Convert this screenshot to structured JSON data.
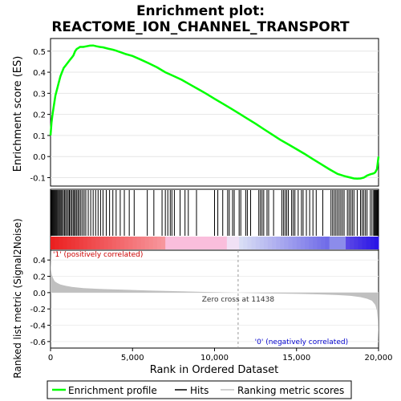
{
  "title_line1": "Enrichment plot:",
  "title_line2": "REACTOME_ION_CHANNEL_TRANSPORT",
  "colors": {
    "enrichment_line": "#00ff00",
    "hits": "#000000",
    "metric_fill": "#c0c0c0",
    "positive_label": "#cc0000",
    "negative_label": "#0000cc",
    "zero_cross_line": "#999999"
  },
  "chart_data": [
    {
      "type": "line",
      "name": "enrichment-profile",
      "ylabel": "Enrichment score (ES)",
      "xlim": [
        0,
        20000
      ],
      "ylim": [
        -0.14,
        0.56
      ],
      "yticks": [
        -0.1,
        0.0,
        0.1,
        0.2,
        0.3,
        0.4,
        0.5
      ],
      "ytick_labels": [
        "-0.1",
        "0.0",
        "0.1",
        "0.2",
        "0.3",
        "0.4",
        "0.5"
      ],
      "grid": true,
      "x": [
        0,
        60,
        120,
        200,
        300,
        400,
        500,
        600,
        700,
        800,
        900,
        1000,
        1100,
        1200,
        1300,
        1400,
        1500,
        1600,
        1700,
        1800,
        2000,
        2200,
        2400,
        2600,
        2800,
        3000,
        3200,
        3500,
        3800,
        4000,
        4300,
        4600,
        5000,
        5500,
        6000,
        6500,
        7000,
        7500,
        8000,
        8500,
        9000,
        9500,
        10000,
        10500,
        11000,
        11500,
        12000,
        12500,
        13000,
        13500,
        14000,
        14500,
        15000,
        15500,
        16000,
        16500,
        17000,
        17500,
        17900,
        18200,
        18500,
        18700,
        18900,
        19100,
        19300,
        19500,
        19700,
        19800,
        19900,
        19950,
        20000
      ],
      "y": [
        0.1,
        0.16,
        0.2,
        0.24,
        0.29,
        0.32,
        0.35,
        0.38,
        0.4,
        0.42,
        0.43,
        0.44,
        0.45,
        0.46,
        0.47,
        0.48,
        0.5,
        0.51,
        0.515,
        0.52,
        0.52,
        0.523,
        0.526,
        0.527,
        0.523,
        0.52,
        0.518,
        0.512,
        0.507,
        0.502,
        0.494,
        0.486,
        0.477,
        0.46,
        0.442,
        0.423,
        0.4,
        0.382,
        0.364,
        0.342,
        0.32,
        0.298,
        0.274,
        0.251,
        0.228,
        0.204,
        0.18,
        0.156,
        0.13,
        0.105,
        0.08,
        0.058,
        0.035,
        0.012,
        -0.012,
        -0.036,
        -0.06,
        -0.082,
        -0.092,
        -0.098,
        -0.104,
        -0.105,
        -0.104,
        -0.1,
        -0.09,
        -0.084,
        -0.08,
        -0.075,
        -0.06,
        -0.03,
        0.0
      ]
    },
    {
      "type": "scatter",
      "name": "hits",
      "hit_positions": [
        20,
        60,
        100,
        150,
        200,
        250,
        300,
        350,
        400,
        450,
        520,
        580,
        640,
        700,
        780,
        850,
        920,
        1000,
        1080,
        1150,
        1220,
        1300,
        1380,
        1450,
        1520,
        1600,
        1680,
        1760,
        1850,
        1950,
        2050,
        2150,
        2300,
        2450,
        2600,
        2750,
        2900,
        3050,
        3200,
        3400,
        3600,
        3800,
        4000,
        4250,
        4500,
        4800,
        5100,
        5900,
        6300,
        6800,
        7000,
        7150,
        7300,
        7400,
        7550,
        7900,
        8200,
        8400,
        8900,
        10000,
        10200,
        10500,
        10800,
        10900,
        11100,
        11200,
        11500,
        11600,
        11900,
        12000,
        12200,
        12700,
        12800,
        12900,
        13000,
        13200,
        13300,
        13600,
        14100,
        14200,
        14300,
        14400,
        14500,
        14700,
        14800,
        14900,
        15100,
        15300,
        15400,
        15600,
        15800,
        16000,
        16200,
        16600,
        17100,
        17200,
        17300,
        17400,
        17500,
        17600,
        17700,
        17800,
        17900,
        18100,
        18200,
        18300,
        18400,
        18500,
        18700,
        18900,
        19000,
        19100,
        19200,
        19300,
        19500,
        19600,
        19700,
        19750,
        19800,
        19850,
        19900,
        19950
      ]
    },
    {
      "type": "area",
      "name": "ranked-list-metric",
      "ylabel": "Ranked list metric (Signal2Noise)",
      "xlabel": "Rank in Ordered Dataset",
      "xlim": [
        0,
        20000
      ],
      "ylim": [
        -0.68,
        0.52
      ],
      "yticks": [
        -0.6,
        -0.4,
        -0.2,
        0.0,
        0.2,
        0.4
      ],
      "ytick_labels": [
        "-0.6",
        "-0.4",
        "-0.2",
        "0.0",
        "0.2",
        "0.4"
      ],
      "xticks": [
        0,
        5000,
        10000,
        15000,
        20000
      ],
      "xtick_labels": [
        "0",
        "5,000",
        "10,000",
        "15,000",
        "20,000"
      ],
      "x": [
        0,
        30,
        80,
        150,
        250,
        400,
        600,
        900,
        1300,
        2000,
        3000,
        4500,
        6000,
        8000,
        10000,
        11438,
        13000,
        15000,
        16500,
        17500,
        18300,
        18900,
        19300,
        19600,
        19800,
        19900,
        19960,
        20000
      ],
      "y": [
        0.48,
        0.28,
        0.22,
        0.18,
        0.14,
        0.12,
        0.1,
        0.085,
        0.07,
        0.055,
        0.045,
        0.035,
        0.025,
        0.015,
        0.006,
        0.0,
        -0.008,
        -0.015,
        -0.022,
        -0.03,
        -0.04,
        -0.055,
        -0.075,
        -0.1,
        -0.15,
        -0.22,
        -0.35,
        -0.64
      ],
      "zero_cross_label": "Zero cross at 11438",
      "zero_cross": 11438,
      "positive_label": "'1' (positively correlated)",
      "negative_label": "'0' (negatively correlated)"
    }
  ],
  "legend": {
    "placement": "bottom",
    "items": [
      {
        "label": "Enrichment profile"
      },
      {
        "label": "Hits"
      },
      {
        "label": "Ranking metric scores"
      }
    ]
  }
}
